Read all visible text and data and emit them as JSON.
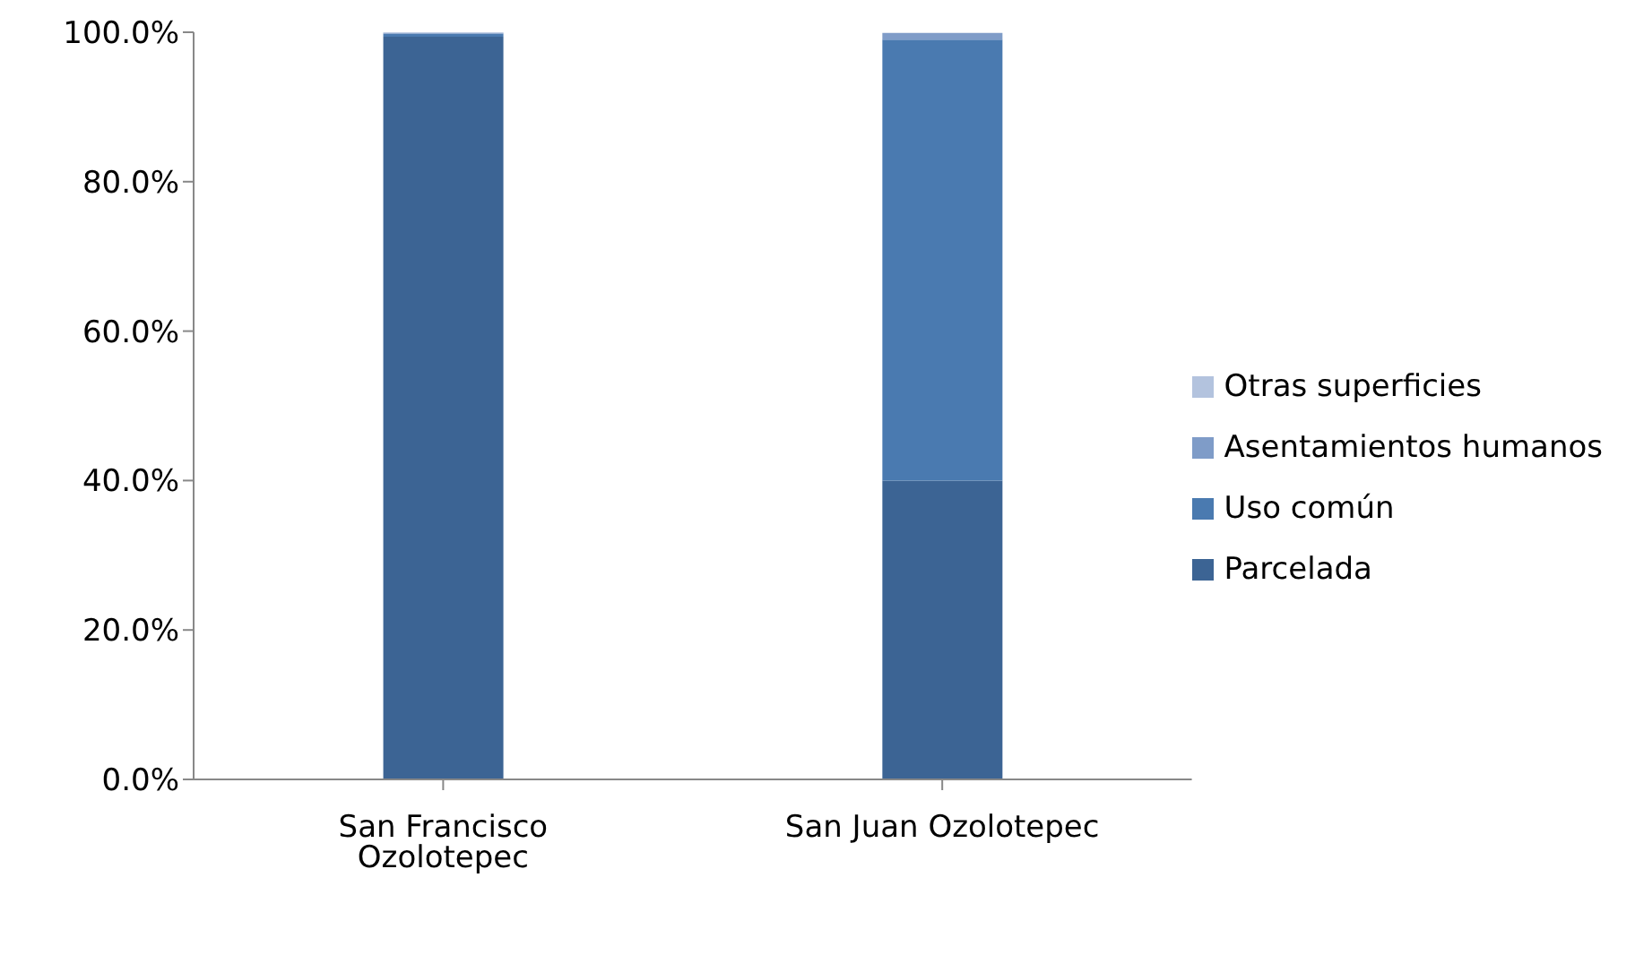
{
  "chart_data": {
    "type": "bar",
    "stacked": true,
    "categories": [
      "San Francisco Ozolotepec",
      "San Juan Ozolotepec"
    ],
    "series": [
      {
        "name": "Parcelada",
        "color": "#3c6494",
        "values": [
          99.4,
          40.0
        ]
      },
      {
        "name": "Uso común",
        "color": "#4a7ab0",
        "values": [
          0.4,
          59.0
        ]
      },
      {
        "name": "Asentamientos humanos",
        "color": "#7f9cc8",
        "values": [
          0.1,
          0.9
        ]
      },
      {
        "name": "Otras superficies",
        "color": "#b3c3de",
        "values": [
          0.1,
          null
        ]
      }
    ],
    "ylim": [
      0,
      100
    ],
    "yticks": [
      {
        "value": 0,
        "label": "0.0%"
      },
      {
        "value": 20,
        "label": "20.0%"
      },
      {
        "value": 40,
        "label": "40.0%"
      },
      {
        "value": 60,
        "label": "60.0%"
      },
      {
        "value": 80,
        "label": "80.0%"
      },
      {
        "value": 100,
        "label": "100.0%"
      }
    ],
    "grid": false,
    "legend": "right"
  }
}
